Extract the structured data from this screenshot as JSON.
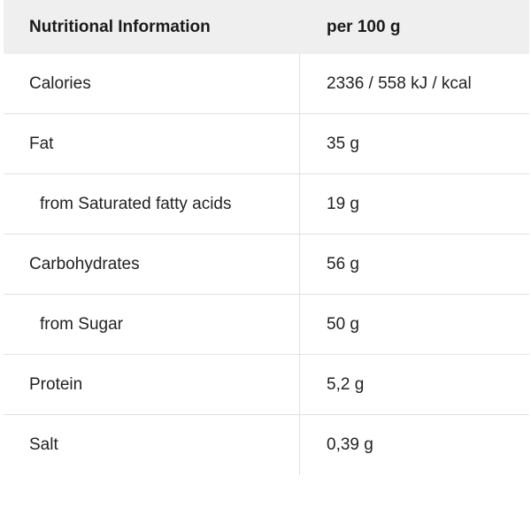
{
  "header": {
    "label": "Nutritional Information",
    "value": "per 100 g"
  },
  "rows": [
    {
      "label": "Calories",
      "value": "2336 / 558 kJ / kcal"
    },
    {
      "label": "Fat",
      "value": "35 g"
    },
    {
      "label": "from Saturated fatty acids",
      "value": "19 g"
    },
    {
      "label": "Carbohydrates",
      "value": "56 g"
    },
    {
      "label": "from Sugar",
      "value": "50 g"
    },
    {
      "label": "Protein",
      "value": "5,2 g"
    },
    {
      "label": "Salt",
      "value": "0,39 g"
    }
  ]
}
